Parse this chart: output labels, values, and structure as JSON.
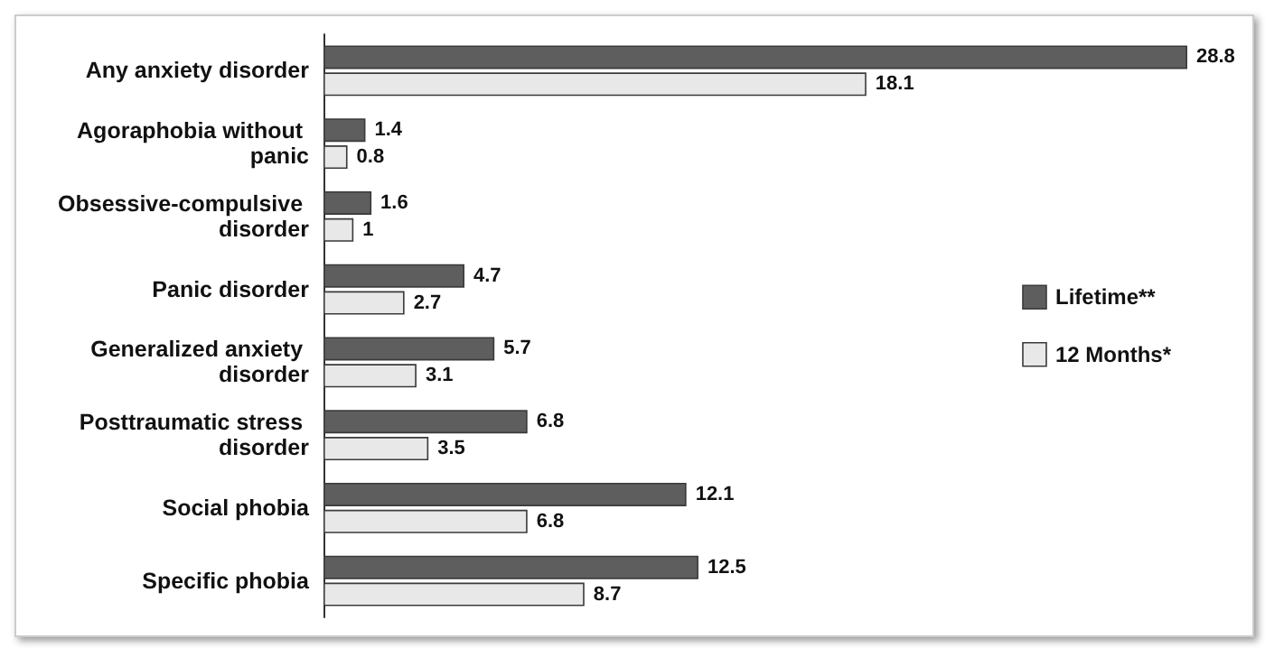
{
  "chart_data": {
    "type": "bar",
    "orientation": "horizontal",
    "categories": [
      "Any anxiety disorder",
      "Agoraphobia without panic",
      "Obsessive-compulsive disorder",
      "Panic disorder",
      "Generalized anxiety disorder",
      "Posttraumatic stress disorder",
      "Social phobia",
      "Specific phobia"
    ],
    "series": [
      {
        "name": "Lifetime**",
        "color": "#5e5e5e",
        "values": [
          28.8,
          1.4,
          1.6,
          4.7,
          5.7,
          6.8,
          12.1,
          12.5
        ]
      },
      {
        "name": "12 Months*",
        "color": "#e8e8e8",
        "values": [
          18.1,
          0.8,
          1,
          2.7,
          3.1,
          3.5,
          6.8,
          8.7
        ]
      }
    ],
    "data_labels": true,
    "legend": "right"
  }
}
